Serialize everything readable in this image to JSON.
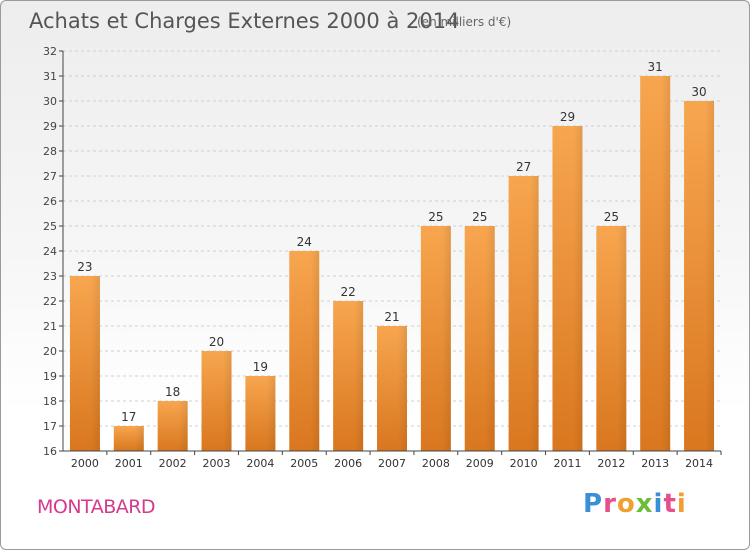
{
  "title": "Achats et Charges Externes 2000 à 2014",
  "subtitle": "(en milliers d'€)",
  "commune": "MONTABARD",
  "logo": {
    "letters": [
      "P",
      "r",
      "o",
      "x",
      "i",
      "t",
      "i"
    ],
    "colors": [
      "#3b8fd6",
      "#e84e8a",
      "#f0a030",
      "#6cbd3a",
      "#3b8fd6",
      "#e84e8a",
      "#f0a030"
    ]
  },
  "colors": {
    "bar_top": "#f7a64f",
    "bar_bottom": "#d9771f",
    "axis": "#444444",
    "grid": "#cfcfcf",
    "title": "#555555",
    "commune": "#d63a8c"
  },
  "chart_data": {
    "type": "bar",
    "categories": [
      "2000",
      "2001",
      "2002",
      "2003",
      "2004",
      "2005",
      "2006",
      "2007",
      "2008",
      "2009",
      "2010",
      "2011",
      "2012",
      "2013",
      "2014"
    ],
    "values": [
      23,
      17,
      18,
      20,
      19,
      24,
      22,
      21,
      25,
      25,
      27,
      29,
      25,
      31,
      30
    ],
    "ylim": [
      16,
      32
    ],
    "yticks": [
      16,
      17,
      18,
      19,
      20,
      21,
      22,
      23,
      24,
      25,
      26,
      27,
      28,
      29,
      30,
      31,
      32
    ],
    "grid": true
  }
}
